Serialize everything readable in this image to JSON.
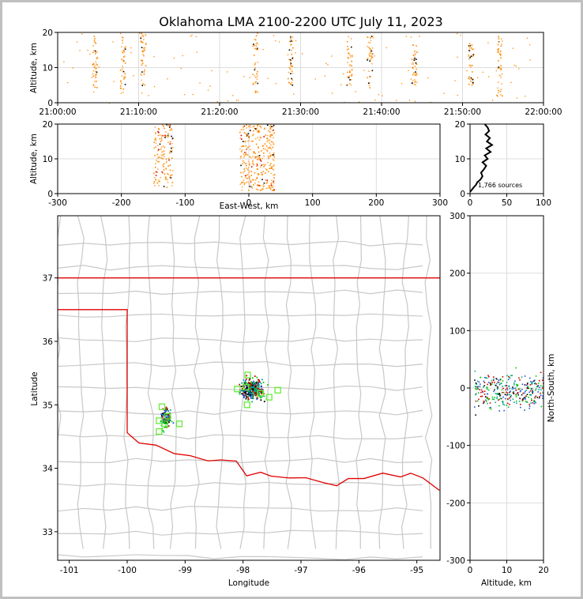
{
  "chart_data": [
    {
      "name": "altitude-vs-time",
      "type": "scatter",
      "title": "Oklahoma LMA 2100-2200 UTC July 11, 2023",
      "ylabel": "Altitude, km",
      "xlabel": "",
      "xlim": [
        "21:00:00",
        "22:00:00"
      ],
      "ylim": [
        0,
        20
      ],
      "xticks": [
        "21:00:00",
        "21:10:00",
        "21:20:00",
        "21:30:00",
        "21:40:00",
        "21:50:00",
        "22:00:00"
      ],
      "yticks": [
        "0",
        "10",
        "20"
      ],
      "grid": true,
      "bursts": [
        {
          "time": "21:04:30",
          "alt_range": [
            3,
            20
          ]
        },
        {
          "time": "21:08:00",
          "alt_range": [
            2,
            20
          ]
        },
        {
          "time": "21:10:30",
          "alt_range": [
            5,
            20
          ]
        },
        {
          "time": "21:24:20",
          "alt_range": [
            3,
            20
          ]
        },
        {
          "time": "21:28:40",
          "alt_range": [
            5,
            20
          ]
        },
        {
          "time": "21:36:00",
          "alt_range": [
            5,
            19
          ]
        },
        {
          "time": "21:38:30",
          "alt_range": [
            4,
            20
          ]
        },
        {
          "time": "21:44:00",
          "alt_range": [
            5,
            17
          ]
        },
        {
          "time": "21:51:00",
          "alt_range": [
            5,
            17
          ]
        },
        {
          "time": "21:54:30",
          "alt_range": [
            2,
            20
          ]
        }
      ]
    },
    {
      "name": "altitude-vs-east-west",
      "type": "scatter",
      "xlabel": "East-West, km",
      "ylabel": "Altitude, km",
      "xlim": [
        -300,
        300
      ],
      "ylim": [
        0,
        20
      ],
      "xticks": [
        "-300",
        "-200",
        "-100",
        "0",
        "100",
        "200",
        "300"
      ],
      "yticks": [
        "0",
        "10",
        "20"
      ],
      "grid": true,
      "clusters": [
        {
          "x_range": [
            -150,
            -120
          ],
          "alt_range": [
            2,
            20
          ]
        },
        {
          "x_range": [
            -15,
            40
          ],
          "alt_range": [
            1,
            20
          ]
        }
      ]
    },
    {
      "name": "altitude-histogram",
      "type": "line",
      "xlim": [
        0,
        100
      ],
      "ylim": [
        0,
        20
      ],
      "xticks": [
        "0",
        "50",
        "100"
      ],
      "yticks": [
        "0",
        "10",
        "20"
      ],
      "grid": true,
      "annotation": "1,766 sources",
      "profile": [
        [
          0,
          0.5
        ],
        [
          2,
          1
        ],
        [
          5,
          1.8
        ],
        [
          8,
          2.5
        ],
        [
          10,
          3.3
        ],
        [
          14,
          4
        ],
        [
          17,
          5
        ],
        [
          15,
          6
        ],
        [
          19,
          7
        ],
        [
          22,
          8
        ],
        [
          17,
          9
        ],
        [
          24,
          10
        ],
        [
          20,
          11
        ],
        [
          28,
          12
        ],
        [
          22,
          13
        ],
        [
          30,
          14
        ],
        [
          23,
          15
        ],
        [
          27,
          16
        ],
        [
          21,
          17
        ],
        [
          26,
          18
        ],
        [
          24,
          19
        ],
        [
          20,
          20
        ]
      ]
    },
    {
      "name": "plan-view-map",
      "type": "scatter",
      "xlabel": "Longitude",
      "ylabel": "Latitude",
      "xlim": [
        -101.2,
        -94.6
      ],
      "ylim": [
        32.55,
        37.98
      ],
      "xticks": [
        "-101",
        "-100",
        "-99",
        "-98",
        "-97",
        "-96",
        "-95"
      ],
      "yticks": [
        "33",
        "34",
        "35",
        "36",
        "37"
      ],
      "state_border_color": "#e00000",
      "county_line_color": "#c8c8c8",
      "source_clusters": [
        {
          "lon": -97.85,
          "lat": 35.25,
          "spread_lon": 0.3,
          "spread_lat": 0.25
        },
        {
          "lon": -99.35,
          "lat": 34.8,
          "spread_lon": 0.15,
          "spread_lat": 0.25
        }
      ],
      "stations_color": "#66ee33"
    },
    {
      "name": "north-south-vs-altitude",
      "type": "scatter",
      "xlabel": "Altitude, km",
      "ylabel": "North-South, km",
      "xlim": [
        0,
        20
      ],
      "ylim": [
        -300,
        300
      ],
      "xticks": [
        "0",
        "10",
        "20"
      ],
      "yticks": [
        "-300",
        "-200",
        "-100",
        "0",
        "100",
        "200",
        "300"
      ],
      "grid": true
    }
  ],
  "colors": {
    "source_palette": [
      "#ff8800",
      "#ffaa44",
      "#000000",
      "#cc0000",
      "#00aa88",
      "#2255dd",
      "#00cc00"
    ],
    "axis": "#000000",
    "grid": "#dddddd"
  }
}
